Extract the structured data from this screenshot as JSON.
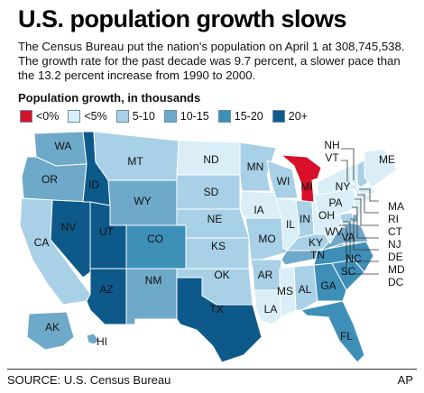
{
  "title": "U.S. population growth slows",
  "intro": "The Census Bureau put the nation's population on April 1 at 308,745,538. The growth rate for the past decade was 9.7 percent, a slower pace than the 13.2 percent increase from 1990 to 2000.",
  "legend": {
    "title": "Population growth, in thousands",
    "items": [
      {
        "label": "<0%",
        "color": "#d8102a"
      },
      {
        "label": "<5%",
        "color": "#d9eef7"
      },
      {
        "label": "5-10",
        "color": "#a8d0e6"
      },
      {
        "label": "10-15",
        "color": "#6fa9c9"
      },
      {
        "label": "15-20",
        "color": "#3d8fb8"
      },
      {
        "label": "20+",
        "color": "#0d5a8a"
      }
    ]
  },
  "states": [
    {
      "abbr": "WA",
      "bin": "10-15"
    },
    {
      "abbr": "OR",
      "bin": "10-15"
    },
    {
      "abbr": "CA",
      "bin": "5-10"
    },
    {
      "abbr": "NV",
      "bin": "20+"
    },
    {
      "abbr": "ID",
      "bin": "20+"
    },
    {
      "abbr": "MT",
      "bin": "5-10"
    },
    {
      "abbr": "WY",
      "bin": "10-15"
    },
    {
      "abbr": "UT",
      "bin": "20+"
    },
    {
      "abbr": "AZ",
      "bin": "20+"
    },
    {
      "abbr": "CO",
      "bin": "15-20"
    },
    {
      "abbr": "NM",
      "bin": "10-15"
    },
    {
      "abbr": "ND",
      "bin": "<5%"
    },
    {
      "abbr": "SD",
      "bin": "5-10"
    },
    {
      "abbr": "NE",
      "bin": "5-10"
    },
    {
      "abbr": "KS",
      "bin": "5-10"
    },
    {
      "abbr": "OK",
      "bin": "5-10"
    },
    {
      "abbr": "TX",
      "bin": "20+"
    },
    {
      "abbr": "MN",
      "bin": "5-10"
    },
    {
      "abbr": "IA",
      "bin": "<5%"
    },
    {
      "abbr": "MO",
      "bin": "5-10"
    },
    {
      "abbr": "AR",
      "bin": "5-10"
    },
    {
      "abbr": "LA",
      "bin": "<5%"
    },
    {
      "abbr": "WI",
      "bin": "5-10"
    },
    {
      "abbr": "IL",
      "bin": "<5%"
    },
    {
      "abbr": "MI",
      "bin": "<0%"
    },
    {
      "abbr": "IN",
      "bin": "5-10"
    },
    {
      "abbr": "OH",
      "bin": "<5%"
    },
    {
      "abbr": "KY",
      "bin": "5-10"
    },
    {
      "abbr": "TN",
      "bin": "10-15"
    },
    {
      "abbr": "MS",
      "bin": "<5%"
    },
    {
      "abbr": "AL",
      "bin": "5-10"
    },
    {
      "abbr": "GA",
      "bin": "15-20"
    },
    {
      "abbr": "FL",
      "bin": "15-20"
    },
    {
      "abbr": "SC",
      "bin": "15-20"
    },
    {
      "abbr": "NC",
      "bin": "15-20"
    },
    {
      "abbr": "VA",
      "bin": "10-15"
    },
    {
      "abbr": "WV",
      "bin": "<5%"
    },
    {
      "abbr": "PA",
      "bin": "<5%"
    },
    {
      "abbr": "NY",
      "bin": "<5%"
    },
    {
      "abbr": "NH",
      "bin": "5-10"
    },
    {
      "abbr": "VT",
      "bin": "<5%"
    },
    {
      "abbr": "ME",
      "bin": "<5%"
    },
    {
      "abbr": "MA",
      "bin": "<5%"
    },
    {
      "abbr": "RI",
      "bin": "<5%"
    },
    {
      "abbr": "CT",
      "bin": "<5%"
    },
    {
      "abbr": "NJ",
      "bin": "<5%"
    },
    {
      "abbr": "DE",
      "bin": "10-15"
    },
    {
      "abbr": "MD",
      "bin": "5-10"
    },
    {
      "abbr": "DC",
      "bin": "5-10"
    },
    {
      "abbr": "AK",
      "bin": "10-15"
    },
    {
      "abbr": "HI",
      "bin": "10-15"
    }
  ],
  "source": "SOURCE: U.S. Census Bureau",
  "credit": "AP"
}
